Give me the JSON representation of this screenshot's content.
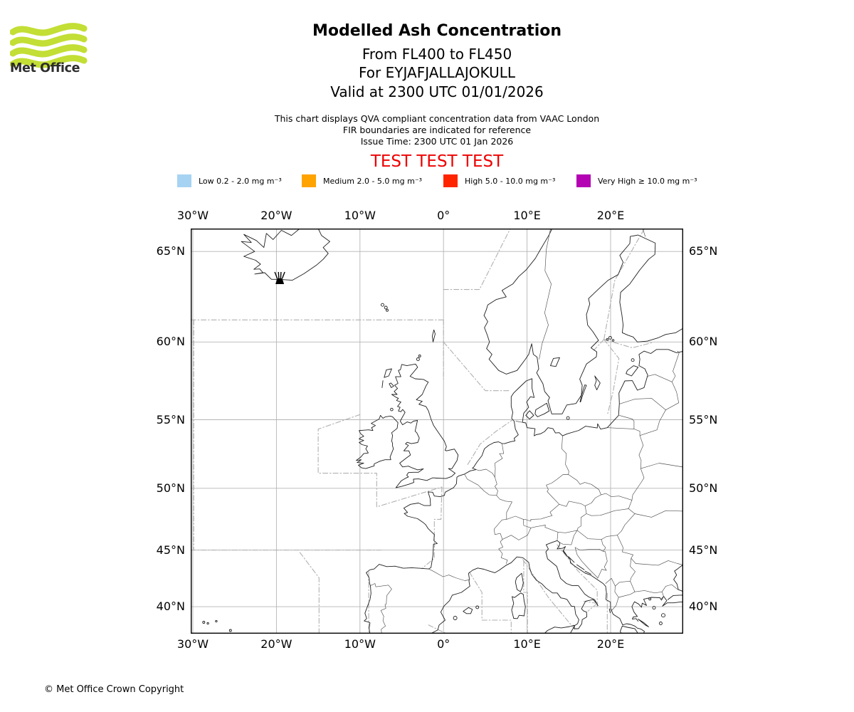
{
  "logo": {
    "text": "Met Office",
    "brand_green": "#c3de35"
  },
  "header": {
    "title": "Modelled Ash Concentration",
    "subtitle_levels": "From FL400 to FL450",
    "subtitle_volcano": "For EYJAFJALLAJOKULL",
    "subtitle_valid": "Valid at 2300 UTC 01/01/2026",
    "notes": [
      "This chart displays QVA compliant concentration data from VAAC London",
      "FIR boundaries are indicated for reference",
      "Issue Time: 2300 UTC 01 Jan 2026"
    ],
    "test_banner": "TEST TEST TEST",
    "test_banner_color": "#ee0000"
  },
  "legend": {
    "items": [
      {
        "key": "low",
        "label": "Low 0.2 - 2.0 mg m⁻³",
        "color": "#a6d3f2"
      },
      {
        "key": "medium",
        "label": "Medium 2.0 - 5.0 mg m⁻³",
        "color": "#ffa300"
      },
      {
        "key": "high",
        "label": "High 5.0 - 10.0 mg m⁻³",
        "color": "#ff2400"
      },
      {
        "key": "very-high",
        "label": "Very High ≥ 10.0 mg m⁻³",
        "color": "#b303b3"
      }
    ]
  },
  "map": {
    "x_tick_labels": [
      "30°W",
      "20°W",
      "10°W",
      "0°",
      "10°E",
      "20°E"
    ],
    "x_tick_lons": [
      -30,
      -20,
      -10,
      0,
      10,
      20
    ],
    "y_tick_labels": [
      "65°N",
      "60°N",
      "55°N",
      "50°N",
      "45°N",
      "40°N"
    ],
    "y_tick_lats": [
      65,
      60,
      55,
      50,
      45,
      40
    ],
    "volcano": {
      "name": "EYJAFJALLAJOKULL",
      "lon": -19.6,
      "lat": 63.6
    },
    "colors": {
      "grid": "#b5b5b5",
      "fir": "#b0b0b0",
      "coast": "#1f1f1f",
      "border": "#4f4f4f",
      "frame": "#000000"
    }
  },
  "footer": {
    "copyright": "© Met Office Crown Copyright"
  }
}
